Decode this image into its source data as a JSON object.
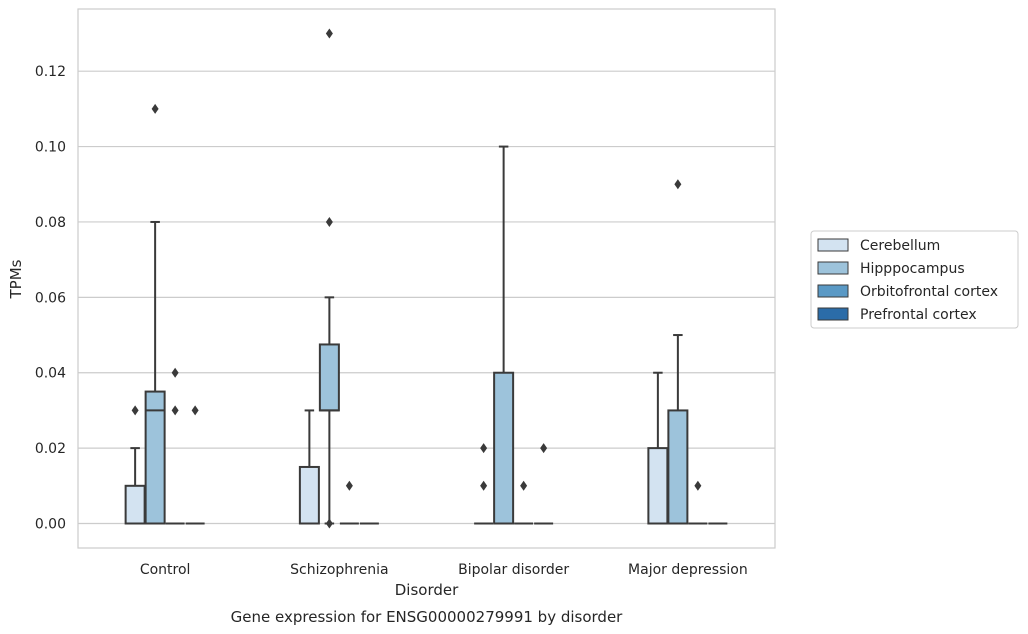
{
  "caption": "Gene expression for ENSG00000279991 by disorder",
  "chart_data": {
    "type": "box",
    "title": "",
    "xlabel": "Disorder",
    "ylabel": "TPMs",
    "ylim": [
      -0.0065,
      0.1365
    ],
    "yticks": [
      0.0,
      0.02,
      0.04,
      0.06,
      0.08,
      0.1,
      0.12
    ],
    "ytick_labels": [
      "0.00",
      "0.02",
      "0.04",
      "0.06",
      "0.08",
      "0.10",
      "0.12"
    ],
    "grid": "horizontal",
    "legend_position": "right",
    "categories": [
      "Control",
      "Schizophrenia",
      "Bipolar disorder",
      "Major depression"
    ],
    "series": [
      {
        "name": "Cerebellum",
        "color": "#d3e3f1",
        "boxes": [
          {
            "category": "Control",
            "min": 0.0,
            "q1": 0.0,
            "median": 0.0,
            "q3": 0.01,
            "max": 0.02,
            "outliers": [
              0.03
            ]
          },
          {
            "category": "Schizophrenia",
            "min": 0.0,
            "q1": 0.0,
            "median": 0.0,
            "q3": 0.015,
            "max": 0.03,
            "outliers": []
          },
          {
            "category": "Bipolar disorder",
            "min": 0.0,
            "q1": 0.0,
            "median": 0.0,
            "q3": 0.0,
            "max": 0.0,
            "outliers": [
              0.01,
              0.02
            ]
          },
          {
            "category": "Major depression",
            "min": 0.0,
            "q1": 0.0,
            "median": 0.0,
            "q3": 0.02,
            "max": 0.04,
            "outliers": []
          }
        ]
      },
      {
        "name": "Hipppocampus",
        "color": "#9dc3db",
        "boxes": [
          {
            "category": "Control",
            "min": 0.0,
            "q1": 0.0,
            "median": 0.03,
            "q3": 0.035,
            "max": 0.08,
            "outliers": [
              0.11
            ]
          },
          {
            "category": "Schizophrenia",
            "min": 0.0,
            "q1": 0.03,
            "median": 0.03,
            "q3": 0.0475,
            "max": 0.06,
            "outliers": [
              0.08,
              0.13,
              0.0
            ]
          },
          {
            "category": "Bipolar disorder",
            "min": 0.0,
            "q1": 0.0,
            "median": 0.0,
            "q3": 0.04,
            "max": 0.1,
            "outliers": []
          },
          {
            "category": "Major depression",
            "min": 0.0,
            "q1": 0.0,
            "median": 0.0,
            "q3": 0.03,
            "max": 0.05,
            "outliers": [
              0.09
            ]
          }
        ]
      },
      {
        "name": "Orbitofrontal cortex",
        "color": "#5a99c5",
        "boxes": [
          {
            "category": "Control",
            "min": 0.0,
            "q1": 0.0,
            "median": 0.0,
            "q3": 0.0,
            "max": 0.0,
            "outliers": [
              0.03,
              0.04
            ]
          },
          {
            "category": "Schizophrenia",
            "min": 0.0,
            "q1": 0.0,
            "median": 0.0,
            "q3": 0.0,
            "max": 0.0,
            "outliers": [
              0.01
            ]
          },
          {
            "category": "Bipolar disorder",
            "min": 0.0,
            "q1": 0.0,
            "median": 0.0,
            "q3": 0.0,
            "max": 0.0,
            "outliers": [
              0.01
            ]
          },
          {
            "category": "Major depression",
            "min": 0.0,
            "q1": 0.0,
            "median": 0.0,
            "q3": 0.0,
            "max": 0.0,
            "outliers": [
              0.01
            ]
          }
        ]
      },
      {
        "name": "Prefrontal cortex",
        "color": "#2b6ca8",
        "boxes": [
          {
            "category": "Control",
            "min": 0.0,
            "q1": 0.0,
            "median": 0.0,
            "q3": 0.0,
            "max": 0.0,
            "outliers": [
              0.03
            ]
          },
          {
            "category": "Schizophrenia",
            "min": 0.0,
            "q1": 0.0,
            "median": 0.0,
            "q3": 0.0,
            "max": 0.0,
            "outliers": []
          },
          {
            "category": "Bipolar disorder",
            "min": 0.0,
            "q1": 0.0,
            "median": 0.0,
            "q3": 0.0,
            "max": 0.0,
            "outliers": [
              0.02
            ]
          },
          {
            "category": "Major depression",
            "min": 0.0,
            "q1": 0.0,
            "median": 0.0,
            "q3": 0.0,
            "max": 0.0,
            "outliers": []
          }
        ]
      }
    ]
  }
}
